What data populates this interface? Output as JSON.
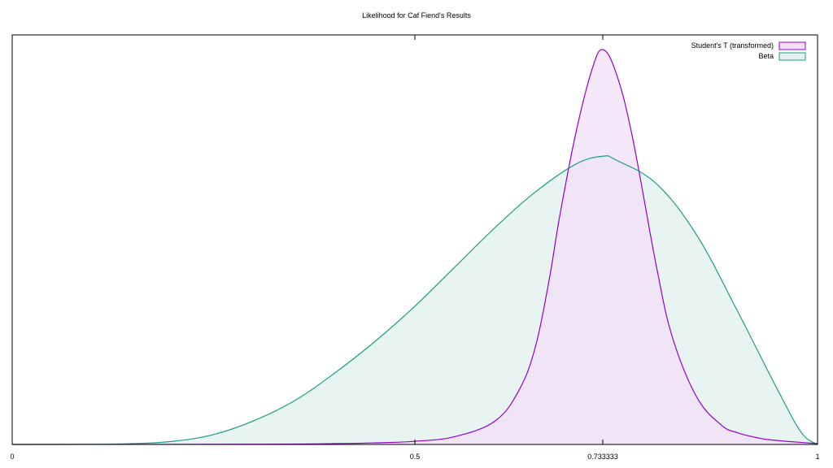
{
  "chart_data": {
    "type": "area",
    "title": "Likelihood for Caf Fiend's Results",
    "xlabel": "",
    "ylabel": "",
    "xlim": [
      0,
      1
    ],
    "x_ticks": [
      "0",
      "0.5",
      "0.733333",
      "1"
    ],
    "x_tick_values": [
      0,
      0.5,
      0.733333,
      1
    ],
    "y_ticks": [],
    "grid": false,
    "legend_position": "top-right",
    "series": [
      {
        "name": "Student's T (transformed)",
        "color": "#9400d3",
        "fill": "#f2e0f8",
        "x": [
          0.0,
          0.3,
          0.4,
          0.45,
          0.5,
          0.55,
          0.6,
          0.63,
          0.65,
          0.667,
          0.68,
          0.7,
          0.72,
          0.733333,
          0.75,
          0.77,
          0.8,
          0.82,
          0.85,
          0.88,
          0.9,
          0.93,
          0.95,
          0.98,
          1.0
        ],
        "y": [
          0.0,
          0.0005,
          0.002,
          0.004,
          0.008,
          0.02,
          0.06,
          0.14,
          0.25,
          0.42,
          0.58,
          0.79,
          0.95,
          1.0,
          0.94,
          0.78,
          0.45,
          0.27,
          0.12,
          0.05,
          0.03,
          0.015,
          0.01,
          0.005,
          0.002
        ]
      },
      {
        "name": "Beta",
        "color": "#1a9e84",
        "fill": "#e3f2ee",
        "x": [
          0.0,
          0.1,
          0.15,
          0.2,
          0.25,
          0.3,
          0.35,
          0.4,
          0.45,
          0.5,
          0.55,
          0.6,
          0.65,
          0.7,
          0.733333,
          0.75,
          0.8,
          0.85,
          0.9,
          0.95,
          0.98,
          1.0
        ],
        "y": [
          0.0,
          0.0002,
          0.002,
          0.008,
          0.025,
          0.06,
          0.11,
          0.18,
          0.26,
          0.35,
          0.45,
          0.55,
          0.64,
          0.71,
          0.73,
          0.72,
          0.66,
          0.53,
          0.34,
          0.14,
          0.03,
          0.0
        ]
      }
    ]
  }
}
